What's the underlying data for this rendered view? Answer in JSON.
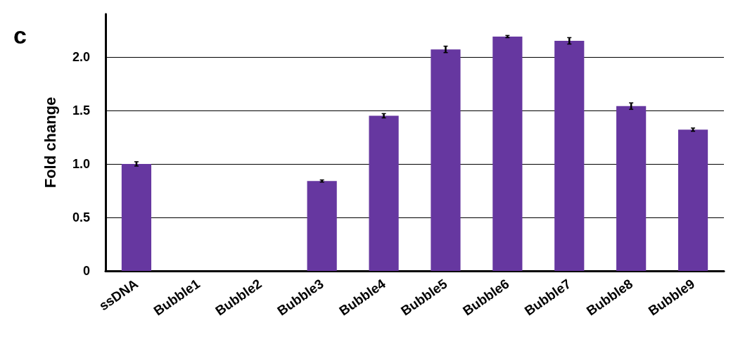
{
  "chart_data": {
    "type": "bar",
    "ylabel": "Fold change",
    "annotations": [
      "c"
    ],
    "categories": [
      "ssDNA",
      "Bubble1",
      "Bubble2",
      "Bubble3",
      "Bubble4",
      "Bubble5",
      "Bubble6",
      "Bubble7",
      "Bubble8",
      "Bubble9"
    ],
    "series": [
      {
        "color": "#6637a0",
        "values": [
          1.0,
          0,
          0,
          0.84,
          1.45,
          2.07,
          2.19,
          2.15,
          1.54,
          1.32
        ],
        "errors": [
          0.02,
          null,
          null,
          0.01,
          0.02,
          0.03,
          0.01,
          0.03,
          0.03,
          0.015
        ]
      }
    ],
    "ylim": [
      0,
      2.4
    ],
    "yticks": [
      0,
      0.5,
      {
        "value": 1,
        "label": "1.0"
      },
      1.5,
      {
        "value": 2,
        "label": "2.0"
      }
    ],
    "grid": "y"
  }
}
